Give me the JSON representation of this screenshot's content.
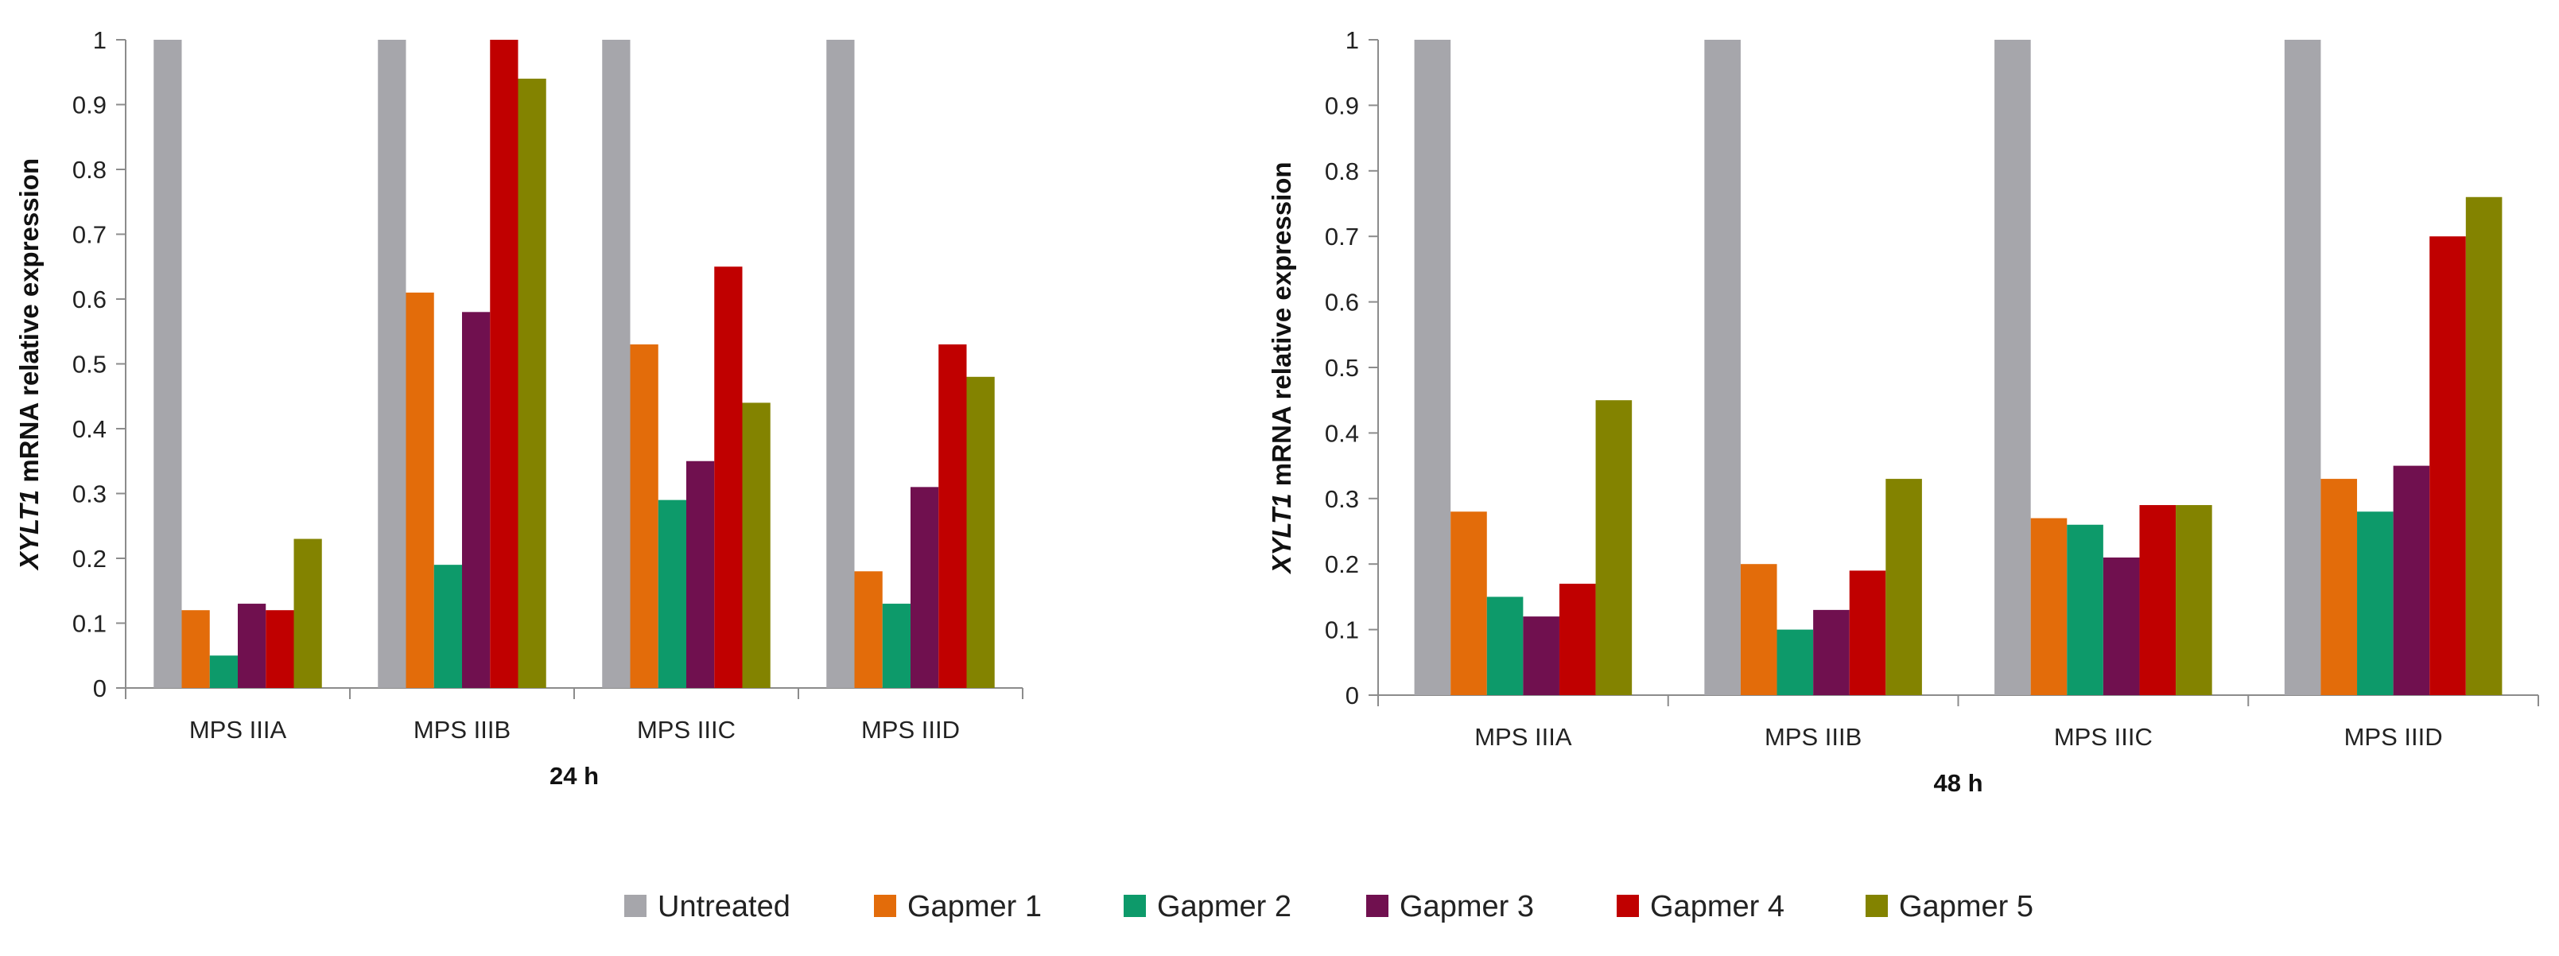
{
  "chart_data": [
    {
      "type": "bar",
      "title": "",
      "xlabel": "24 h",
      "ylabel_italic": "XYLT1",
      "ylabel": " mRNA relative expression",
      "ylim": [
        0,
        1
      ],
      "yticks": [
        "0",
        "0.1",
        "0.2",
        "0.3",
        "0.4",
        "0.5",
        "0.6",
        "0.7",
        "0.8",
        "0.9",
        "1"
      ],
      "categories": [
        "MPS IIIA",
        "MPS IIIB",
        "MPS IIIC",
        "MPS IIID"
      ],
      "series": [
        {
          "name": "Untreated",
          "values": [
            1.0,
            1.0,
            1.0,
            1.0
          ]
        },
        {
          "name": "Gapmer 1",
          "values": [
            0.12,
            0.61,
            0.53,
            0.18
          ]
        },
        {
          "name": "Gapmer 2",
          "values": [
            0.05,
            0.19,
            0.29,
            0.13
          ]
        },
        {
          "name": "Gapmer 3",
          "values": [
            0.13,
            0.58,
            0.35,
            0.31
          ]
        },
        {
          "name": "Gapmer 4",
          "values": [
            0.12,
            1.0,
            0.65,
            0.53
          ]
        },
        {
          "name": "Gapmer 5",
          "values": [
            0.23,
            0.94,
            0.44,
            0.48
          ]
        }
      ]
    },
    {
      "type": "bar",
      "title": "",
      "xlabel": "48 h",
      "ylabel_italic": "XYLT1",
      "ylabel": " mRNA relative expression",
      "ylim": [
        0,
        1
      ],
      "yticks": [
        "0",
        "0.1",
        "0.2",
        "0.3",
        "0.4",
        "0.5",
        "0.6",
        "0.7",
        "0.8",
        "0.9",
        "1"
      ],
      "categories": [
        "MPS IIIA",
        "MPS IIIB",
        "MPS IIIC",
        "MPS IIID"
      ],
      "series": [
        {
          "name": "Untreated",
          "values": [
            1.0,
            1.0,
            1.0,
            1.0
          ]
        },
        {
          "name": "Gapmer 1",
          "values": [
            0.28,
            0.2,
            0.27,
            0.33
          ]
        },
        {
          "name": "Gapmer 2",
          "values": [
            0.15,
            0.1,
            0.26,
            0.28
          ]
        },
        {
          "name": "Gapmer 3",
          "values": [
            0.12,
            0.13,
            0.21,
            0.35
          ]
        },
        {
          "name": "Gapmer 4",
          "values": [
            0.17,
            0.19,
            0.29,
            0.7
          ]
        },
        {
          "name": "Gapmer 5",
          "values": [
            0.45,
            0.33,
            0.29,
            0.76
          ]
        }
      ]
    }
  ],
  "legend": {
    "position": "bottom-center",
    "items": [
      {
        "name": "Untreated",
        "color": "#a6a6ab"
      },
      {
        "name": "Gapmer 1",
        "color": "#e36c0a"
      },
      {
        "name": "Gapmer 2",
        "color": "#0d9a6a"
      },
      {
        "name": "Gapmer 3",
        "color": "#70104f"
      },
      {
        "name": "Gapmer 4",
        "color": "#c00000"
      },
      {
        "name": "Gapmer 5",
        "color": "#838300"
      }
    ]
  }
}
